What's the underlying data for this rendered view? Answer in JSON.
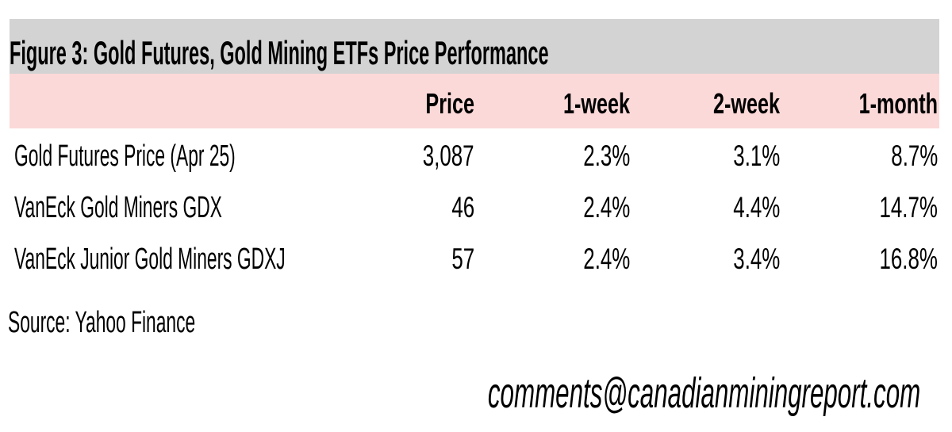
{
  "figure": {
    "title": "Figure 3: Gold Futures, Gold Mining ETFs Price Performance"
  },
  "table": {
    "columns": [
      "Price",
      "1-week",
      "2-week",
      "1-month"
    ],
    "rows": [
      {
        "label": "Gold Futures Price (Apr 25)",
        "values": [
          "3,087",
          "2.3%",
          "3.1%",
          "8.7%"
        ]
      },
      {
        "label": "VanEck Gold Miners GDX",
        "values": [
          "46",
          "2.4%",
          "4.4%",
          "14.7%"
        ]
      },
      {
        "label": "VanEck Junior Gold Miners GDXJ",
        "values": [
          "57",
          "2.4%",
          "3.4%",
          "16.8%"
        ]
      }
    ]
  },
  "source": "Source: Yahoo Finance",
  "email": "comments@canadianminingreport.com",
  "colors": {
    "title_bar": "#D3D3D3",
    "header_bar": "#FBD9D8",
    "text": "#000000"
  },
  "chart_data": {
    "type": "table",
    "title": "Figure 3: Gold Futures, Gold Mining ETFs Price Performance",
    "columns": [
      "",
      "Price",
      "1-week",
      "2-week",
      "1-month"
    ],
    "rows": [
      [
        "Gold Futures Price (Apr 25)",
        "3,087",
        "2.3%",
        "3.1%",
        "8.7%"
      ],
      [
        "VanEck Gold Miners GDX",
        "46",
        "2.4%",
        "4.4%",
        "14.7%"
      ],
      [
        "VanEck Junior Gold Miners GDXJ",
        "57",
        "2.4%",
        "3.4%",
        "16.8%"
      ]
    ],
    "source": "Source: Yahoo Finance",
    "footer": "comments@canadianminingreport.com"
  }
}
